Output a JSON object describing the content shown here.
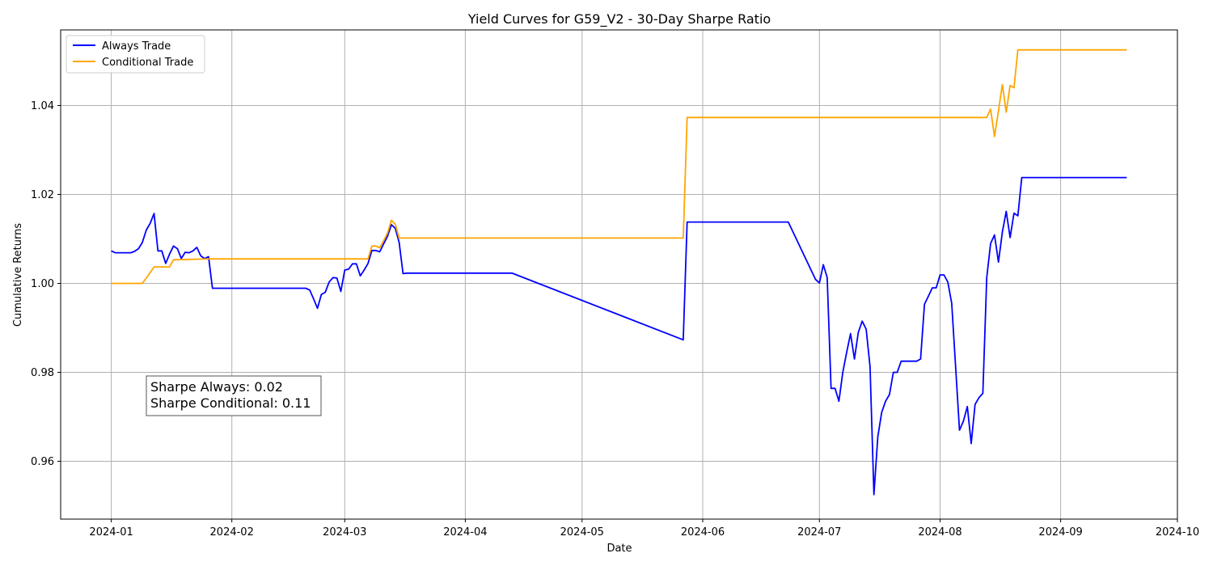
{
  "chart_data": {
    "type": "line",
    "title": "Yield Curves for G59_V2 - 30-Day Sharpe Ratio",
    "xlabel": "Date",
    "ylabel": "Cumulative Returns",
    "xlim": [
      "2023-12-19",
      "2024-10-01"
    ],
    "ylim": [
      0.947,
      1.057
    ],
    "x_ticks": [
      "2024-01",
      "2024-02",
      "2024-03",
      "2024-04",
      "2024-05",
      "2024-06",
      "2024-07",
      "2024-08",
      "2024-09",
      "2024-10"
    ],
    "x_tick_dates": [
      "2024-01-01",
      "2024-02-01",
      "2024-03-01",
      "2024-04-01",
      "2024-05-01",
      "2024-06-01",
      "2024-07-01",
      "2024-08-01",
      "2024-09-01",
      "2024-10-01"
    ],
    "y_ticks": [
      "0.96",
      "0.98",
      "1.00",
      "1.02",
      "1.04"
    ],
    "y_tick_values": [
      0.96,
      0.98,
      1.0,
      1.02,
      1.04
    ],
    "grid": true,
    "legend_position": "top-left",
    "series": [
      {
        "name": "Always Trade",
        "color": "#0000ff",
        "points": [
          [
            "2024-01-01",
            1.0073
          ],
          [
            "2024-01-02",
            1.0069
          ],
          [
            "2024-01-06",
            1.0069
          ],
          [
            "2024-01-07",
            1.0072
          ],
          [
            "2024-01-08",
            1.0078
          ],
          [
            "2024-01-09",
            1.0092
          ],
          [
            "2024-01-10",
            1.012
          ],
          [
            "2024-01-11",
            1.0135
          ],
          [
            "2024-01-12",
            1.0157
          ],
          [
            "2024-01-13",
            1.0073
          ],
          [
            "2024-01-14",
            1.0073
          ],
          [
            "2024-01-15",
            1.0045
          ],
          [
            "2024-01-16",
            1.0066
          ],
          [
            "2024-01-17",
            1.0084
          ],
          [
            "2024-01-18",
            1.0078
          ],
          [
            "2024-01-19",
            1.0056
          ],
          [
            "2024-01-20",
            1.007
          ],
          [
            "2024-01-21",
            1.0069
          ],
          [
            "2024-01-22",
            1.0073
          ],
          [
            "2024-01-23",
            1.0081
          ],
          [
            "2024-01-24",
            1.0062
          ],
          [
            "2024-01-25",
            1.0056
          ],
          [
            "2024-01-26",
            1.006
          ],
          [
            "2024-01-27",
            0.9989
          ],
          [
            "2024-02-20",
            0.9989
          ],
          [
            "2024-02-21",
            0.9985
          ],
          [
            "2024-02-22",
            0.9965
          ],
          [
            "2024-02-23",
            0.9944
          ],
          [
            "2024-02-24",
            0.9975
          ],
          [
            "2024-02-25",
            0.998
          ],
          [
            "2024-02-26",
            1.0003
          ],
          [
            "2024-02-27",
            1.0013
          ],
          [
            "2024-02-28",
            1.0012
          ],
          [
            "2024-02-29",
            0.9982
          ],
          [
            "2024-03-01",
            1.003
          ],
          [
            "2024-03-02",
            1.0032
          ],
          [
            "2024-03-03",
            1.0044
          ],
          [
            "2024-03-04",
            1.0044
          ],
          [
            "2024-03-05",
            1.0017
          ],
          [
            "2024-03-06",
            1.003
          ],
          [
            "2024-03-07",
            1.0045
          ],
          [
            "2024-03-08",
            1.0074
          ],
          [
            "2024-03-09",
            1.0074
          ],
          [
            "2024-03-10",
            1.0071
          ],
          [
            "2024-03-11",
            1.0089
          ],
          [
            "2024-03-12",
            1.0106
          ],
          [
            "2024-03-13",
            1.0132
          ],
          [
            "2024-03-14",
            1.0124
          ],
          [
            "2024-03-15",
            1.0092
          ],
          [
            "2024-03-16",
            1.0022
          ],
          [
            "2024-03-17",
            1.0023
          ],
          [
            "2024-04-13",
            1.0023
          ],
          [
            "2024-05-27",
            0.9873
          ],
          [
            "2024-05-28",
            1.0138
          ],
          [
            "2024-06-23",
            1.0138
          ],
          [
            "2024-06-30",
            1.0009
          ],
          [
            "2024-07-01",
            1.0001
          ],
          [
            "2024-07-02",
            1.0042
          ],
          [
            "2024-07-03",
            1.0013
          ],
          [
            "2024-07-04",
            0.9764
          ],
          [
            "2024-07-05",
            0.9764
          ],
          [
            "2024-07-06",
            0.9735
          ],
          [
            "2024-07-07",
            0.98
          ],
          [
            "2024-07-08",
            0.9845
          ],
          [
            "2024-07-09",
            0.9887
          ],
          [
            "2024-07-10",
            0.983
          ],
          [
            "2024-07-11",
            0.989
          ],
          [
            "2024-07-12",
            0.9915
          ],
          [
            "2024-07-13",
            0.9897
          ],
          [
            "2024-07-14",
            0.9813
          ],
          [
            "2024-07-15",
            0.9525
          ],
          [
            "2024-07-16",
            0.9655
          ],
          [
            "2024-07-17",
            0.971
          ],
          [
            "2024-07-18",
            0.9735
          ],
          [
            "2024-07-19",
            0.975
          ],
          [
            "2024-07-20",
            0.98
          ],
          [
            "2024-07-21",
            0.98
          ],
          [
            "2024-07-22",
            0.9825
          ],
          [
            "2024-07-23",
            0.9825
          ],
          [
            "2024-07-26",
            0.9825
          ],
          [
            "2024-07-27",
            0.983
          ],
          [
            "2024-07-28",
            0.9953
          ],
          [
            "2024-07-29",
            0.9971
          ],
          [
            "2024-07-30",
            0.999
          ],
          [
            "2024-07-31",
            0.999
          ],
          [
            "2024-08-01",
            1.0019
          ],
          [
            "2024-08-02",
            1.0019
          ],
          [
            "2024-08-03",
            1.0003
          ],
          [
            "2024-08-04",
            0.9955
          ],
          [
            "2024-08-05",
            0.9813
          ],
          [
            "2024-08-06",
            0.967
          ],
          [
            "2024-08-07",
            0.969
          ],
          [
            "2024-08-08",
            0.9723
          ],
          [
            "2024-08-09",
            0.964
          ],
          [
            "2024-08-10",
            0.9728
          ],
          [
            "2024-08-11",
            0.9743
          ],
          [
            "2024-08-12",
            0.9753
          ],
          [
            "2024-08-13",
            1.0013
          ],
          [
            "2024-08-14",
            1.009
          ],
          [
            "2024-08-15",
            1.0109
          ],
          [
            "2024-08-16",
            1.0048
          ],
          [
            "2024-08-17",
            1.0115
          ],
          [
            "2024-08-18",
            1.0162
          ],
          [
            "2024-08-19",
            1.0103
          ],
          [
            "2024-08-20",
            1.0158
          ],
          [
            "2024-08-21",
            1.0152
          ],
          [
            "2024-08-22",
            1.0238
          ],
          [
            "2024-09-18",
            1.0238
          ]
        ]
      },
      {
        "name": "Conditional Trade",
        "color": "#ffa500",
        "points": [
          [
            "2024-01-01",
            1.0
          ],
          [
            "2024-01-09",
            1.0
          ],
          [
            "2024-01-10",
            1.0012
          ],
          [
            "2024-01-12",
            1.0037
          ],
          [
            "2024-01-15",
            1.0037
          ],
          [
            "2024-01-16",
            1.0037
          ],
          [
            "2024-01-17",
            1.0053
          ],
          [
            "2024-01-26",
            1.0055
          ],
          [
            "2024-03-07",
            1.0055
          ],
          [
            "2024-03-08",
            1.0084
          ],
          [
            "2024-03-09",
            1.0084
          ],
          [
            "2024-03-10",
            1.008
          ],
          [
            "2024-03-11",
            1.0096
          ],
          [
            "2024-03-12",
            1.0113
          ],
          [
            "2024-03-13",
            1.0142
          ],
          [
            "2024-03-14",
            1.0133
          ],
          [
            "2024-03-15",
            1.0102
          ],
          [
            "2024-05-27",
            1.0102
          ],
          [
            "2024-05-28",
            1.0373
          ],
          [
            "2024-08-12",
            1.0373
          ],
          [
            "2024-08-13",
            1.0373
          ],
          [
            "2024-08-14",
            1.0392
          ],
          [
            "2024-08-15",
            1.033
          ],
          [
            "2024-08-16",
            1.0388
          ],
          [
            "2024-08-17",
            1.0447
          ],
          [
            "2024-08-18",
            1.0385
          ],
          [
            "2024-08-19",
            1.0445
          ],
          [
            "2024-08-20",
            1.044
          ],
          [
            "2024-08-21",
            1.0525
          ],
          [
            "2024-09-18",
            1.0525
          ]
        ]
      }
    ],
    "annotation": [
      "Sharpe Always: 0.02",
      "Sharpe Conditional: 0.11"
    ]
  }
}
